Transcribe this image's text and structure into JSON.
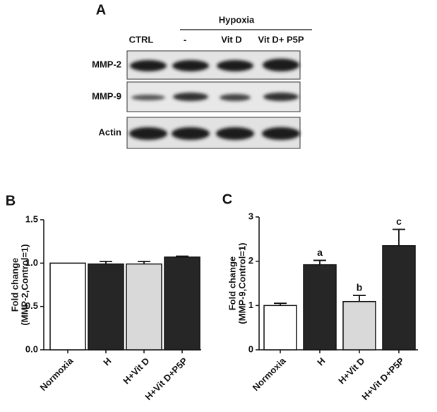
{
  "panel_a": {
    "label": "A",
    "group": "Hypoxia",
    "lanes": [
      "CTRL",
      "-",
      "Vit D",
      "Vit D+ P5P"
    ],
    "rows": [
      "MMP-2",
      "MMP-9",
      "Actin"
    ]
  },
  "chart_data": [
    {
      "type": "bar",
      "panel": "B",
      "ylabel": [
        "Fold change",
        "(MMP-2,Control=1)"
      ],
      "categories": [
        "Normoxia",
        "H",
        "H+Vit D",
        "H+Vit D+P5P"
      ],
      "values": [
        1.0,
        0.99,
        0.99,
        1.07
      ],
      "errors": [
        null,
        0.03,
        0.03,
        0.01
      ],
      "colors": [
        "#ffffff",
        "#262626",
        "#d9d9d9",
        "#262626"
      ],
      "ylim": [
        0,
        1.5
      ],
      "yticks": [
        {
          "value": 0,
          "label": "0.0"
        },
        {
          "value": 0.5,
          "label": "0.5"
        },
        {
          "value": 1,
          "label": "1.0"
        },
        {
          "value": 1.5,
          "label": "1.5"
        }
      ]
    },
    {
      "type": "bar",
      "panel": "C",
      "ylabel": [
        "Fold change",
        "(MMP-9,Control=1)"
      ],
      "categories": [
        "Normoxia",
        "H",
        "H+Vit D",
        "H+Vit D+P5P"
      ],
      "values": [
        1.0,
        1.92,
        1.09,
        2.35
      ],
      "errors": [
        0.05,
        0.1,
        0.14,
        0.37
      ],
      "letters": [
        null,
        "a",
        "b",
        "c"
      ],
      "colors": [
        "#ffffff",
        "#262626",
        "#d9d9d9",
        "#262626"
      ],
      "ylim": [
        0,
        3
      ],
      "yticks": [
        0,
        1,
        2,
        3
      ]
    }
  ]
}
